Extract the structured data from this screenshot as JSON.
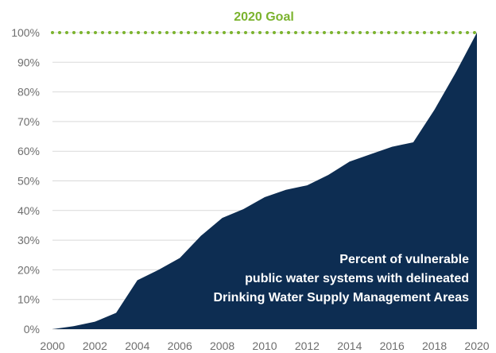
{
  "chart_data": {
    "type": "area",
    "x": [
      2000,
      2001,
      2002,
      2003,
      2004,
      2005,
      2006,
      2007,
      2008,
      2009,
      2010,
      2011,
      2012,
      2013,
      2014,
      2015,
      2016,
      2017,
      2018,
      2019,
      2020
    ],
    "x_ticks": [
      "2000",
      "2002",
      "2004",
      "2006",
      "2008",
      "2010",
      "2012",
      "2014",
      "2016",
      "2018",
      "2020"
    ],
    "series": [
      {
        "values": [
          0,
          1,
          2.5,
          5.5,
          16.5,
          20,
          24,
          31.5,
          37.5,
          40.5,
          44.5,
          47,
          48.5,
          52,
          56.5,
          59,
          61.5,
          63,
          74,
          86.5,
          100
        ],
        "color": "#0d2d52"
      }
    ],
    "ylim": [
      0,
      100
    ],
    "y_ticks": [
      "0%",
      "10%",
      "20%",
      "30%",
      "40%",
      "50%",
      "60%",
      "70%",
      "80%",
      "90%",
      "100%"
    ],
    "goal": {
      "value": 100,
      "label": "2020 Goal",
      "color": "#7bb32e",
      "style": "dotted"
    },
    "annotation": [
      "Percent of vulnerable",
      "public water systems with delineated",
      "Drinking Water Supply Management Areas"
    ],
    "grid": true,
    "xlabel": "",
    "ylabel": "",
    "title": ""
  }
}
